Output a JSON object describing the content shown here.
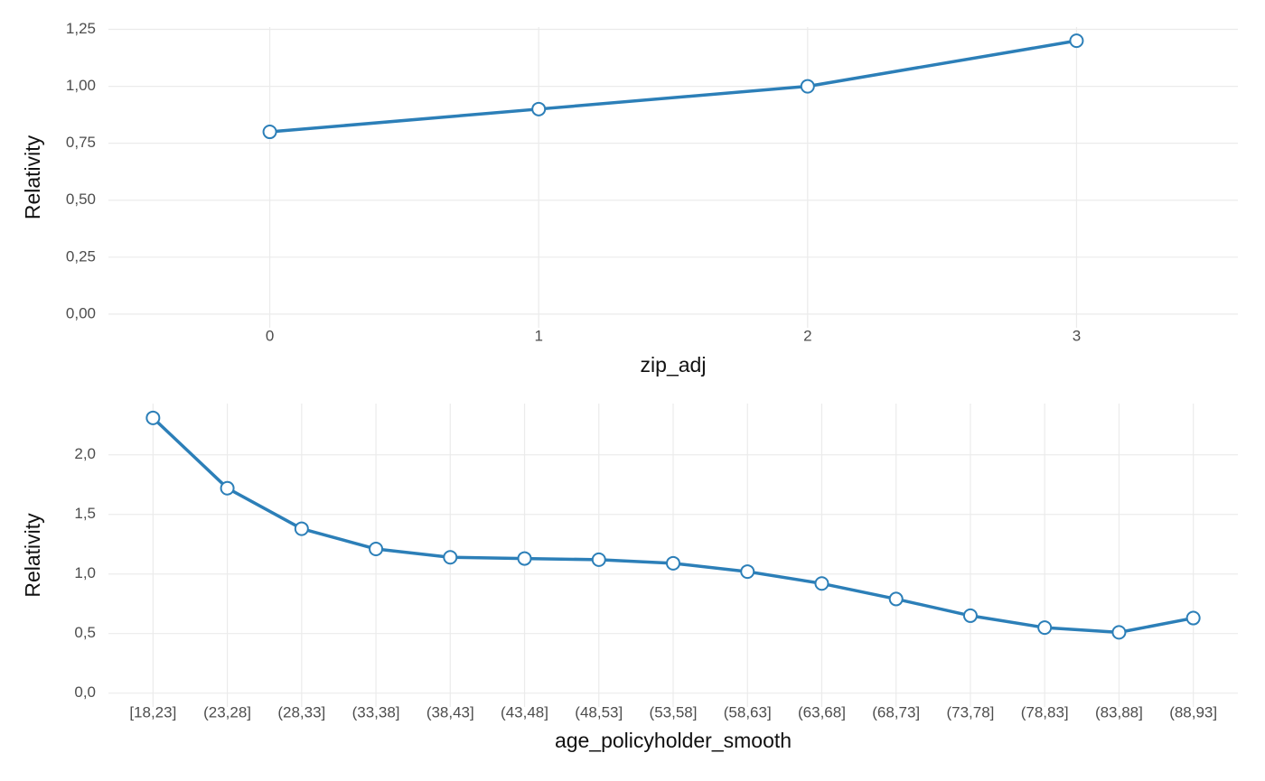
{
  "chart_data": [
    {
      "type": "line",
      "x_label": "zip_adj",
      "y_label": "Relativity",
      "x": [
        0,
        1,
        2,
        3
      ],
      "xlim": [
        -0.6,
        3.6
      ],
      "xticks": [
        0,
        1,
        2,
        3
      ],
      "series": [
        {
          "color": "#2c7fb8",
          "values": [
            0.8,
            0.9,
            1.0,
            1.2
          ]
        }
      ],
      "ylim": [
        -0.06,
        1.26
      ],
      "yticks": [
        {
          "value": 0,
          "label": "0,00"
        },
        {
          "value": 0.25,
          "label": "0,25"
        },
        {
          "value": 0.5,
          "label": "0,50"
        },
        {
          "value": 0.75,
          "label": "0,75"
        },
        {
          "value": 1.0,
          "label": "1,00"
        },
        {
          "value": 1.25,
          "label": "1,25"
        }
      ],
      "grid": true
    },
    {
      "type": "line",
      "x_label": "age_policyholder_smooth",
      "y_label": "Relativity",
      "categories": [
        "[18,23]",
        "(23,28]",
        "(28,33]",
        "(33,38]",
        "(38,43]",
        "(43,48]",
        "(48,53]",
        "(53,58]",
        "(58,63]",
        "(63,68]",
        "(68,73]",
        "(73,78]",
        "(78,83]",
        "(83,88]",
        "(88,93]"
      ],
      "series": [
        {
          "color": "#2c7fb8",
          "values": [
            2.31,
            1.72,
            1.38,
            1.21,
            1.14,
            1.13,
            1.12,
            1.09,
            1.02,
            0.92,
            0.79,
            0.65,
            0.55,
            0.51,
            0.63
          ]
        }
      ],
      "ylim": [
        -0.116,
        2.43
      ],
      "yticks": [
        {
          "value": 0,
          "label": "0,0"
        },
        {
          "value": 0.5,
          "label": "0,5"
        },
        {
          "value": 1.0,
          "label": "1,0"
        },
        {
          "value": 1.5,
          "label": "1,5"
        },
        {
          "value": 2.0,
          "label": "2,0"
        }
      ],
      "grid": true
    }
  ]
}
